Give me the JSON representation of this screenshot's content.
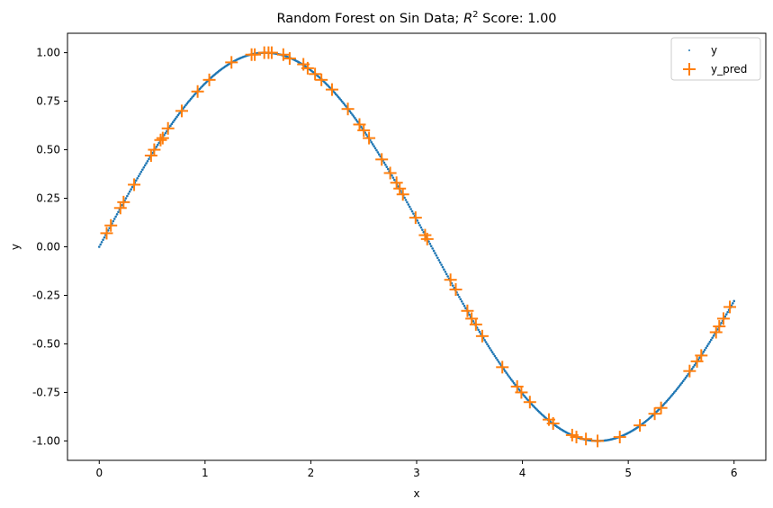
{
  "chart_data": {
    "type": "scatter",
    "title": "Random Forest on Sin Data; R² Score: 1.00",
    "title_parts": {
      "prefix": "Random Forest on Sin Data; ",
      "r": "R",
      "sup": "2",
      "suffix": " Score: 1.00"
    },
    "xlabel": "x",
    "ylabel": "y",
    "xlim": [
      -0.3,
      6.3
    ],
    "ylim": [
      -1.1,
      1.1
    ],
    "x_ticks": [
      0,
      1,
      2,
      3,
      4,
      5,
      6
    ],
    "x_tick_labels": [
      "0",
      "1",
      "2",
      "3",
      "4",
      "5",
      "6"
    ],
    "y_ticks": [
      -1.0,
      -0.75,
      -0.5,
      -0.25,
      0.0,
      0.25,
      0.5,
      0.75,
      1.0
    ],
    "y_tick_labels": [
      "-1.00",
      "-0.75",
      "-0.50",
      "-0.25",
      "0.00",
      "0.25",
      "0.50",
      "0.75",
      "1.00"
    ],
    "grid": false,
    "legend_position": "top-right",
    "series": [
      {
        "name": "y",
        "marker": "point",
        "color": "#1f77b4",
        "function": "sin(x)",
        "x_range": [
          0,
          6
        ]
      },
      {
        "name": "y_pred",
        "marker": "plus",
        "color": "#ff7f0e",
        "x": [
          0.07,
          0.11,
          0.2,
          0.23,
          0.33,
          0.49,
          0.52,
          0.58,
          0.6,
          0.65,
          0.78,
          0.93,
          1.04,
          1.25,
          1.44,
          1.47,
          1.56,
          1.6,
          1.63,
          1.74,
          1.8,
          1.93,
          1.97,
          2.04,
          2.1,
          2.2,
          2.35,
          2.46,
          2.5,
          2.55,
          2.67,
          2.75,
          2.81,
          2.84,
          2.87,
          2.99,
          3.08,
          3.1,
          3.32,
          3.37,
          3.48,
          3.52,
          3.56,
          3.62,
          3.81,
          3.95,
          3.99,
          4.07,
          4.25,
          4.29,
          4.47,
          4.51,
          4.6,
          4.71,
          4.92,
          5.11,
          5.25,
          5.31,
          5.58,
          5.65,
          5.69,
          5.83,
          5.86,
          5.9,
          5.96
        ],
        "y": [
          0.07,
          0.11,
          0.2,
          0.23,
          0.32,
          0.47,
          0.5,
          0.55,
          0.56,
          0.61,
          0.7,
          0.8,
          0.86,
          0.95,
          0.99,
          0.99,
          1.0,
          1.0,
          1.0,
          0.99,
          0.97,
          0.94,
          0.92,
          0.89,
          0.86,
          0.81,
          0.71,
          0.63,
          0.6,
          0.56,
          0.45,
          0.38,
          0.33,
          0.3,
          0.27,
          0.15,
          0.06,
          0.04,
          -0.17,
          -0.22,
          -0.33,
          -0.37,
          -0.4,
          -0.46,
          -0.62,
          -0.72,
          -0.75,
          -0.8,
          -0.89,
          -0.91,
          -0.97,
          -0.98,
          -0.99,
          -1.0,
          -0.98,
          -0.92,
          -0.86,
          -0.83,
          -0.64,
          -0.59,
          -0.56,
          -0.44,
          -0.41,
          -0.37,
          -0.31
        ]
      }
    ]
  }
}
